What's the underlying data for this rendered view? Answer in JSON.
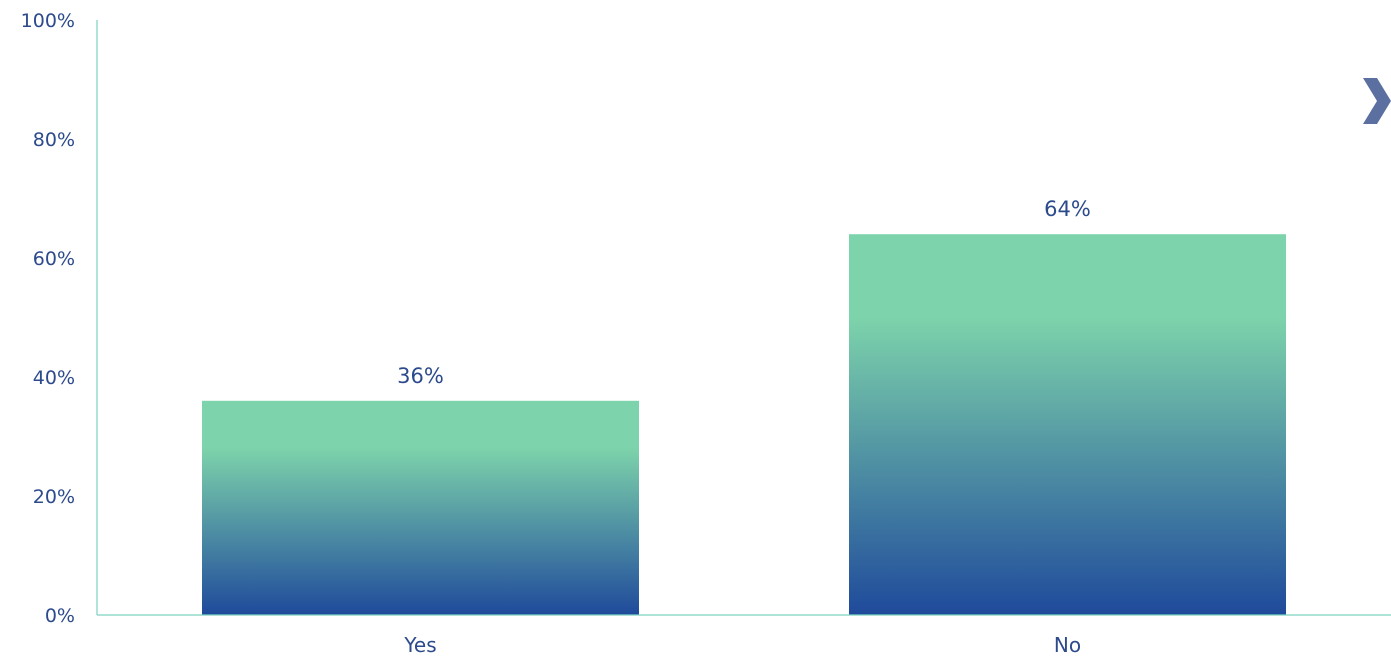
{
  "chart_data": {
    "type": "bar",
    "title": "",
    "xlabel": "",
    "ylabel": "",
    "categories": [
      "Yes",
      "No"
    ],
    "values": [
      36,
      64
    ],
    "data_labels": [
      "36%",
      "64%"
    ],
    "ylim": [
      0,
      100
    ],
    "yticks": [
      0,
      20,
      40,
      60,
      80,
      100
    ],
    "ytick_labels": [
      "0%",
      "20%",
      "40%",
      "60%",
      "80%",
      "100%"
    ],
    "grid": false,
    "legend": "none"
  },
  "colors": {
    "bar_top": "#7dd3ab",
    "bar_bottom": "#1f4a9b",
    "axis": "#7dd3c0",
    "text": "#2c4a8c",
    "icon": "#5b6fa0"
  },
  "icons": {
    "next": "chevron-right-icon"
  }
}
